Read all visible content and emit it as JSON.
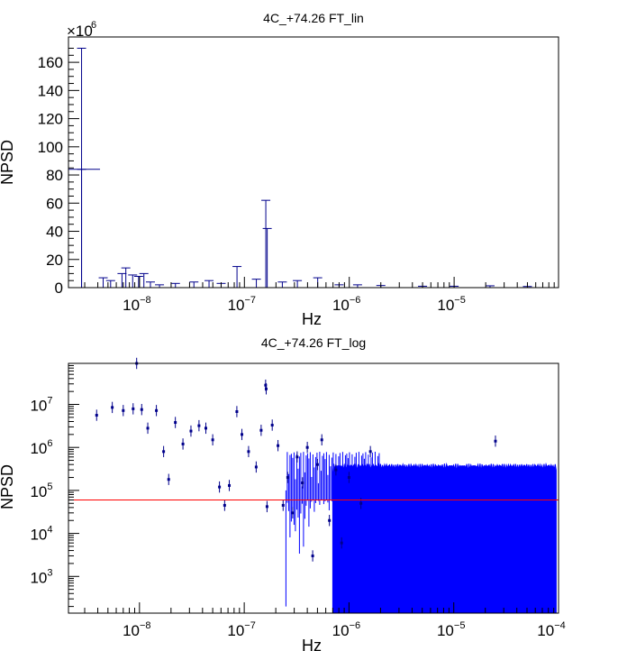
{
  "chart_data": [
    {
      "type": "line",
      "title": "4C_+74.26 FT_lin",
      "xlabel": "Hz",
      "ylabel": "NPSD",
      "x_scale": "log",
      "y_scale": "linear",
      "y_multiplier": "×10",
      "y_multiplier_exp": "6",
      "xlim": [
        2.1e-09,
        9.9e-05
      ],
      "ylim": [
        0,
        178
      ],
      "x_ticks": [
        {
          "base": "10",
          "exp": "−8",
          "value": 1e-08
        },
        {
          "base": "10",
          "exp": "−7",
          "value": 1e-07
        },
        {
          "base": "10",
          "exp": "−6",
          "value": 1e-06
        },
        {
          "base": "10",
          "exp": "−5",
          "value": 1e-05
        }
      ],
      "y_ticks": [
        "0",
        "20",
        "40",
        "60",
        "80",
        "100",
        "120",
        "140",
        "160"
      ],
      "colors": {
        "line": "#00008b",
        "axis": "#000000"
      },
      "series": [
        {
          "values": [
            {
              "x": 2.8e-09,
              "y": 170
            },
            {
              "x": 2.8e-09,
              "y": 84
            },
            {
              "x": 4.5e-09,
              "y": 7
            },
            {
              "x": 5.3e-09,
              "y": 5
            },
            {
              "x": 6.8e-09,
              "y": 10
            },
            {
              "x": 7.4e-09,
              "y": 14
            },
            {
              "x": 8.6e-09,
              "y": 9
            },
            {
              "x": 9.8e-09,
              "y": 8
            },
            {
              "x": 1.1e-08,
              "y": 10
            },
            {
              "x": 1.27e-08,
              "y": 4
            },
            {
              "x": 1.55e-08,
              "y": 2
            },
            {
              "x": 2.2e-08,
              "y": 3
            },
            {
              "x": 3.3e-08,
              "y": 4
            },
            {
              "x": 4.6e-08,
              "y": 5
            },
            {
              "x": 6e-08,
              "y": 3
            },
            {
              "x": 8.5e-08,
              "y": 15
            },
            {
              "x": 1.3e-07,
              "y": 6
            },
            {
              "x": 1.6e-07,
              "y": 62
            },
            {
              "x": 1.65e-07,
              "y": 42
            },
            {
              "x": 2.3e-07,
              "y": 4
            },
            {
              "x": 3.2e-07,
              "y": 5
            },
            {
              "x": 5e-07,
              "y": 7
            },
            {
              "x": 8e-07,
              "y": 2
            },
            {
              "x": 1.2e-06,
              "y": 2
            },
            {
              "x": 2e-06,
              "y": 1.5
            },
            {
              "x": 5e-06,
              "y": 1
            },
            {
              "x": 1e-05,
              "y": 1
            },
            {
              "x": 2.2e-05,
              "y": 1.3
            },
            {
              "x": 5e-05,
              "y": 0.8
            }
          ]
        }
      ]
    },
    {
      "type": "scatter",
      "title": "4C_+74.26 FT_log",
      "xlabel": "Hz",
      "ylabel": "NPSD",
      "x_scale": "log",
      "y_scale": "log",
      "xlim": [
        2.1e-09,
        0.0001
      ],
      "ylim": [
        140,
        90000000.0
      ],
      "x_ticks": [
        {
          "base": "10",
          "exp": "−8",
          "value": 1e-08
        },
        {
          "base": "10",
          "exp": "−7",
          "value": 1e-07
        },
        {
          "base": "10",
          "exp": "−6",
          "value": 1e-06
        },
        {
          "base": "10",
          "exp": "−5",
          "value": 1e-05
        },
        {
          "base": "10",
          "exp": "−4",
          "value": 0.0001
        }
      ],
      "y_ticks": [
        {
          "base": "10",
          "exp": "3",
          "value": 1000.0
        },
        {
          "base": "10",
          "exp": "4",
          "value": 10000.0
        },
        {
          "base": "10",
          "exp": "5",
          "value": 100000.0
        },
        {
          "base": "10",
          "exp": "6",
          "value": 1000000.0
        },
        {
          "base": "10",
          "exp": "7",
          "value": 10000000.0
        }
      ],
      "reference_line": 60000.0,
      "colors": {
        "points": "#00008b",
        "band": "#0000ff",
        "reference": "#ff0000"
      },
      "series": [
        {
          "values": [
            {
              "x": 3.9e-09,
              "y": 5600000.0
            },
            {
              "x": 5.5e-09,
              "y": 8500000.0
            },
            {
              "x": 7e-09,
              "y": 7200000.0
            },
            {
              "x": 8.7e-09,
              "y": 7900000.0
            },
            {
              "x": 1.05e-08,
              "y": 7600000.0
            },
            {
              "x": 1.2e-08,
              "y": 2800000.0
            },
            {
              "x": 1.45e-08,
              "y": 7200000.0
            },
            {
              "x": 1.7e-08,
              "y": 800000.0
            },
            {
              "x": 1.9e-08,
              "y": 180000.0
            },
            {
              "x": 2.2e-08,
              "y": 3800000.0
            },
            {
              "x": 2.6e-08,
              "y": 1200000.0
            },
            {
              "x": 3.1e-08,
              "y": 2400000.0
            },
            {
              "x": 3.7e-08,
              "y": 3200000.0
            },
            {
              "x": 4.3e-08,
              "y": 2800000.0
            },
            {
              "x": 5e-08,
              "y": 1500000.0
            },
            {
              "x": 5.8e-08,
              "y": 120000.0
            },
            {
              "x": 6.5e-08,
              "y": 45000.0
            },
            {
              "x": 7.2e-08,
              "y": 130000.0
            },
            {
              "x": 8.5e-08,
              "y": 6800000.0
            },
            {
              "x": 9.5e-08,
              "y": 2000000.0
            },
            {
              "x": 1.1e-07,
              "y": 800000.0
            },
            {
              "x": 1.3e-07,
              "y": 350000.0
            },
            {
              "x": 1.45e-07,
              "y": 2500000.0
            },
            {
              "x": 1.65e-07,
              "y": 42000.0
            },
            {
              "x": 1.6e-07,
              "y": 28000000.0
            },
            {
              "x": 1.62e-07,
              "y": 23000000.0
            },
            {
              "x": 1.85e-07,
              "y": 3300000.0
            },
            {
              "x": 2.1e-07,
              "y": 1100000.0
            },
            {
              "x": 2.35e-07,
              "y": 45000.0
            },
            {
              "x": 2.6e-07,
              "y": 200000.0
            },
            {
              "x": 2.9e-07,
              "y": 30000.0
            },
            {
              "x": 3.2e-07,
              "y": 600000.0
            },
            {
              "x": 3.6e-07,
              "y": 150000.0
            },
            {
              "x": 4e-07,
              "y": 1000000.0
            },
            {
              "x": 4.5e-07,
              "y": 3000.0
            },
            {
              "x": 5e-07,
              "y": 400000.0
            },
            {
              "x": 5.5e-07,
              "y": 1500000.0
            },
            {
              "x": 6.5e-07,
              "y": 20000.0
            },
            {
              "x": 7.5e-07,
              "y": 300000.0
            },
            {
              "x": 8.5e-07,
              "y": 6000.0
            },
            {
              "x": 1e-06,
              "y": 200000.0
            },
            {
              "x": 1.3e-06,
              "y": 50000.0
            },
            {
              "x": 1.6e-06,
              "y": 800000.0
            },
            {
              "x": 2.5e-05,
              "y": 1400000.0
            },
            {
              "x": 9.4e-09,
              "y": 90000000.0
            }
          ]
        }
      ]
    }
  ]
}
